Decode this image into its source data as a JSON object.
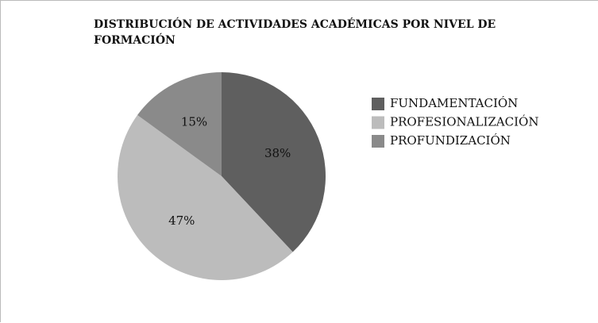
{
  "chart_data": {
    "type": "pie",
    "title": "DISTRIBUCIÓN DE ACTIVIDADES ACADÉMICAS POR NIVEL DE FORMACIÓN",
    "categories": [
      "FUNDAMENTACIÓN",
      "PROFESIONALIZACIÓN",
      "PROFUNDIZACIÓN"
    ],
    "values": [
      38,
      47,
      15
    ],
    "value_labels": [
      "38%",
      "47%",
      "15%"
    ],
    "colors": [
      "#5f5f5f",
      "#bcbcbc",
      "#8a8a8a"
    ],
    "legend": "right"
  }
}
